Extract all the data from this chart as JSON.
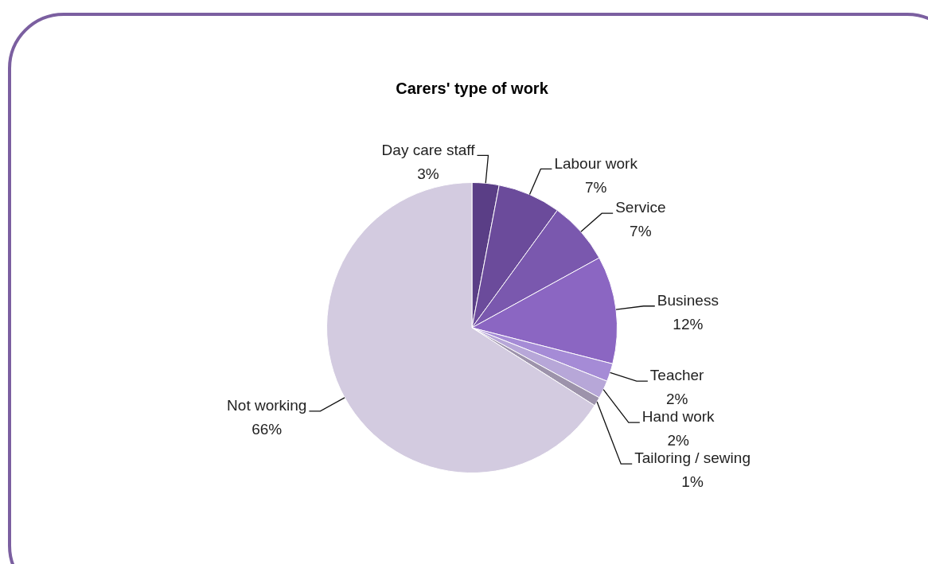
{
  "chart_data": {
    "type": "pie",
    "title": "Carers' type of work",
    "categories": [
      "Day care staff",
      "Labour work",
      "Service",
      "Business",
      "Teacher",
      "Hand work",
      "Tailoring / sewing",
      "Not working"
    ],
    "values": [
      3,
      7,
      7,
      12,
      2,
      2,
      1,
      66
    ],
    "value_labels": [
      "3%",
      "7%",
      "7%",
      "12%",
      "2%",
      "2%",
      "1%",
      "66%"
    ],
    "colors": [
      "#5a3e86",
      "#6b4b9b",
      "#7a58ae",
      "#8b66c2",
      "#a58bd6",
      "#b7a7d8",
      "#9d93ab",
      "#d3cbe0"
    ],
    "legend": false
  }
}
